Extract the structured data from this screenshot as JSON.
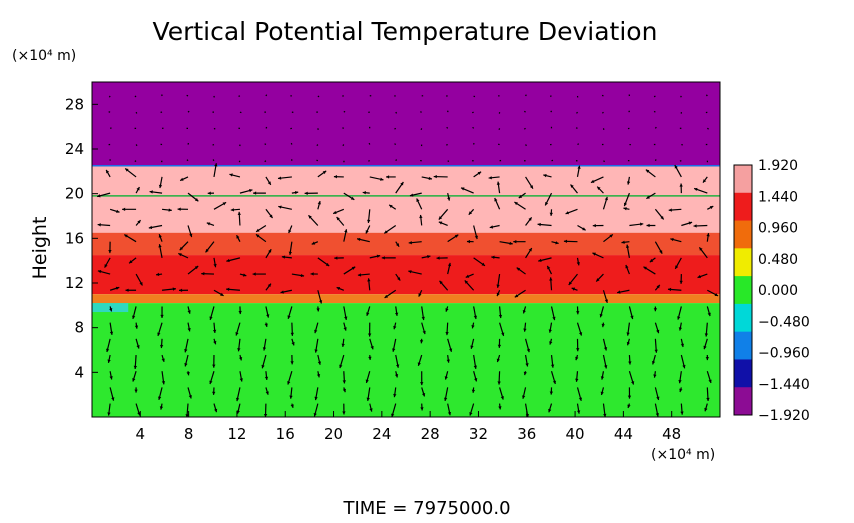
{
  "chart_data": {
    "type": "heatmap",
    "title": "Vertical Potential Temperature Deviation",
    "ylabel": "Height",
    "y_unit_label": "(×10⁴ m)",
    "x_unit_label": "(×10⁴ m)",
    "footer": "TIME  =  7975000.0",
    "xlim": [
      0,
      52
    ],
    "ylim": [
      0,
      30
    ],
    "x_ticks": [
      4,
      8,
      12,
      16,
      20,
      24,
      28,
      32,
      36,
      40,
      44,
      48
    ],
    "y_ticks": [
      4,
      8,
      12,
      16,
      20,
      24,
      28
    ],
    "colorbar": {
      "labels": [
        "1.920",
        "1.440",
        "0.960",
        "0.480",
        "0.000",
        "−0.480",
        "−0.960",
        "−1.440",
        "−1.920"
      ],
      "values": [
        1.92,
        1.44,
        0.96,
        0.48,
        0.0,
        -0.48,
        -0.96,
        -1.44,
        -1.92
      ],
      "colors": [
        "#f5a0a0",
        "#ee1c1c",
        "#f06c0c",
        "#f0ec00",
        "#28e828",
        "#00d8d8",
        "#1080e8",
        "#1010a8",
        "#8c0c94"
      ]
    },
    "layers": [
      {
        "y_from": 22.5,
        "y_to": 30.0,
        "value": -1.92,
        "color": "#9400a0"
      },
      {
        "y_from": 19.8,
        "y_to": 22.5,
        "value": 1.92,
        "color": "#ffb6b6"
      },
      {
        "y_from": 16.5,
        "y_to": 19.8,
        "value": 1.92,
        "color": "#ffb6b6"
      },
      {
        "y_from": 14.5,
        "y_to": 16.5,
        "value": 1.44,
        "color": "#f05030"
      },
      {
        "y_from": 11.0,
        "y_to": 14.5,
        "value": 1.44,
        "color": "#ee1c1c"
      },
      {
        "y_from": 10.2,
        "y_to": 11.0,
        "value": 0.96,
        "color": "#f08020"
      },
      {
        "y_from": 0.0,
        "y_to": 10.2,
        "value": 0.0,
        "color": "#2ee82e"
      }
    ],
    "grid": false
  }
}
